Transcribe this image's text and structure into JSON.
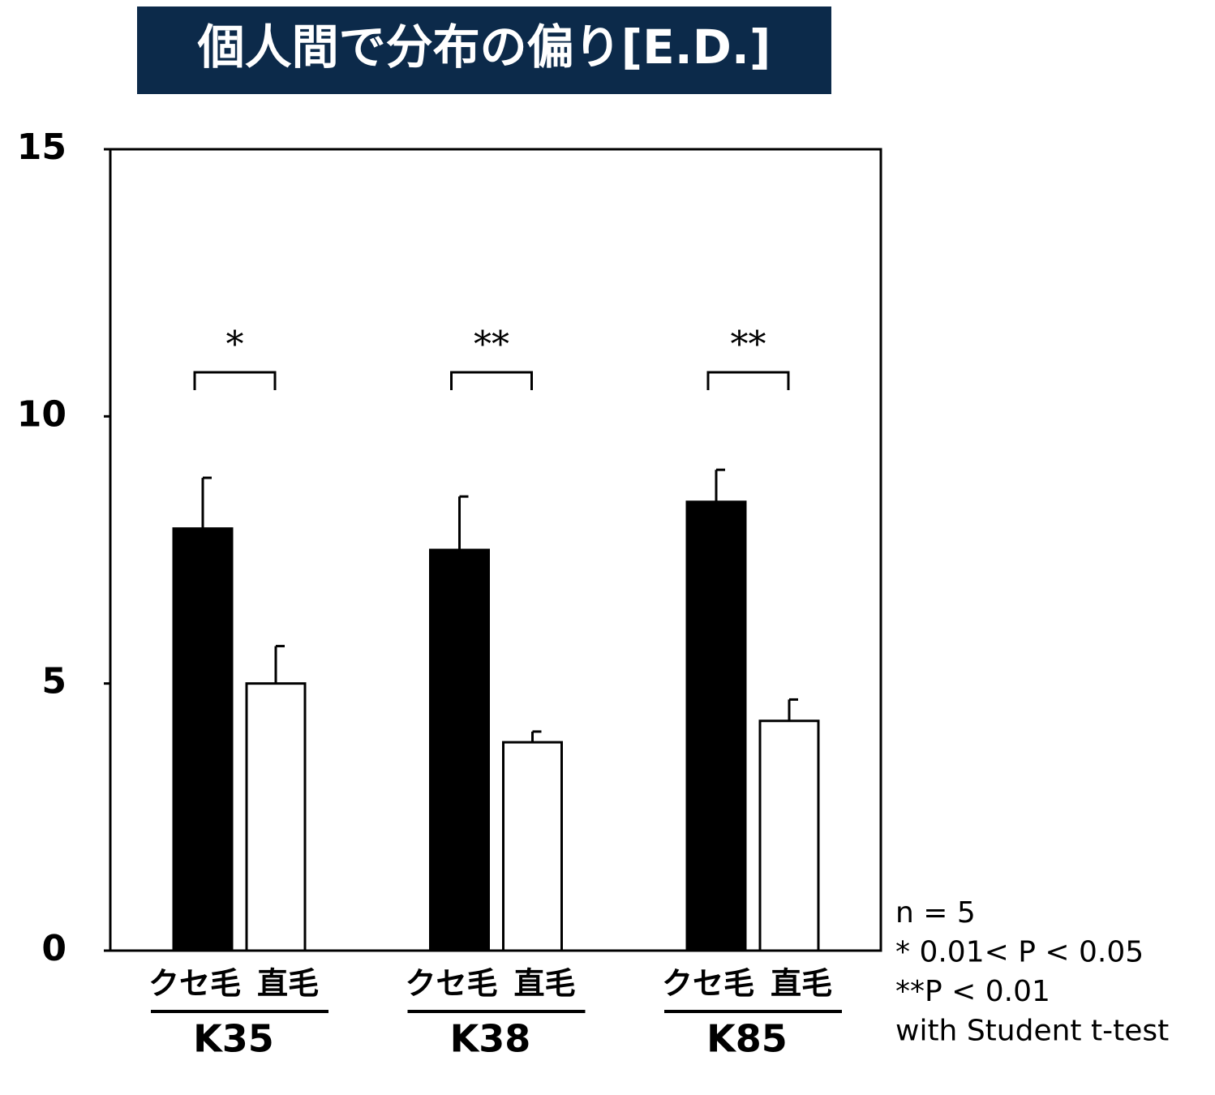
{
  "chart_data": {
    "type": "bar",
    "title": "個人間で分布の偏り[E.D.]",
    "categories": [
      "K35",
      "K38",
      "K85"
    ],
    "series": [
      {
        "name": "クセ毛",
        "color": "#000000",
        "values": [
          7.9,
          7.5,
          8.4
        ],
        "errors": [
          0.95,
          1.0,
          0.6
        ]
      },
      {
        "name": "直毛",
        "color": "#ffffff",
        "values": [
          5.0,
          3.9,
          4.3
        ],
        "errors": [
          0.7,
          0.2,
          0.4
        ]
      }
    ],
    "significance": [
      "*",
      "**",
      "**"
    ],
    "notes": [
      "n = 5",
      "* 0.01< P < 0.05",
      "**P < 0.01",
      "with Student t-test"
    ],
    "ylim": [
      0,
      15
    ],
    "yticks": [
      0,
      5,
      10,
      15
    ],
    "grid": false
  }
}
